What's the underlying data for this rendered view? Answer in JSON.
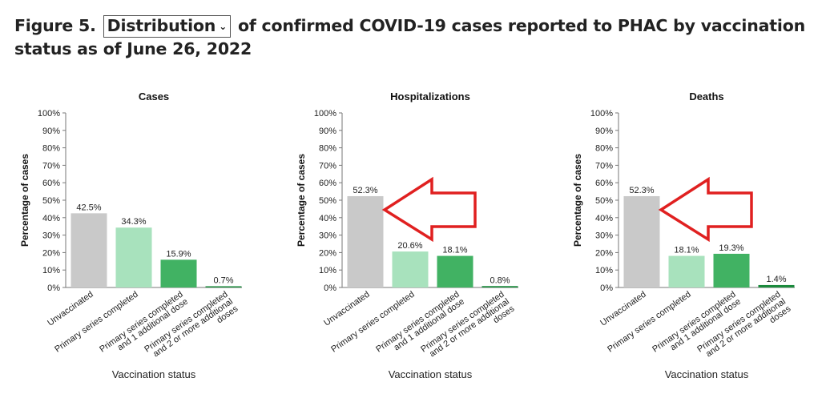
{
  "header": {
    "figure_label": "Figure 5.",
    "select_value": "Distribution",
    "title_rest": "of confirmed COVID-19 cases reported to PHAC by vaccination status as of June 26, 2022"
  },
  "colors": {
    "unvaccinated": "#c9c9c9",
    "primary": "#a8e2bd",
    "one_additional": "#41b263",
    "two_additional": "#1b8a3c",
    "arrow": "#e02020"
  },
  "icons": {
    "select": "chevron-down-icon",
    "callout": "arrow-left-icon"
  },
  "chart_data": [
    {
      "type": "bar",
      "title": "Cases",
      "ylabel": "Percentage of cases",
      "xlabel": "Vaccination status",
      "ylim": [
        0,
        100
      ],
      "yticks": [
        "0%",
        "10%",
        "20%",
        "30%",
        "40%",
        "50%",
        "60%",
        "70%",
        "80%",
        "90%",
        "100%"
      ],
      "categories": [
        "Unvaccinated",
        "Primary series completed",
        "Primary series completed and 1 additional dose",
        "Primary series completed and 2 or more additional doses"
      ],
      "values": [
        42.5,
        34.3,
        15.9,
        0.7
      ],
      "value_labels": [
        "42.5%",
        "34.3%",
        "15.9%",
        "0.7%"
      ],
      "arrow": false
    },
    {
      "type": "bar",
      "title": "Hospitalizations",
      "ylabel": "Percentage of cases",
      "xlabel": "Vaccination status",
      "ylim": [
        0,
        100
      ],
      "yticks": [
        "0%",
        "10%",
        "20%",
        "30%",
        "40%",
        "50%",
        "60%",
        "70%",
        "80%",
        "90%",
        "100%"
      ],
      "categories": [
        "Unvaccinated",
        "Primary series completed",
        "Primary series completed and 1 additional dose",
        "Primary series completed and 2 or more additional doses"
      ],
      "values": [
        52.3,
        20.6,
        18.1,
        0.8
      ],
      "value_labels": [
        "52.3%",
        "20.6%",
        "18.1%",
        "0.8%"
      ],
      "arrow": true
    },
    {
      "type": "bar",
      "title": "Deaths",
      "ylabel": "Percentage of cases",
      "xlabel": "Vaccination status",
      "ylim": [
        0,
        100
      ],
      "yticks": [
        "0%",
        "10%",
        "20%",
        "30%",
        "40%",
        "50%",
        "60%",
        "70%",
        "80%",
        "90%",
        "100%"
      ],
      "categories": [
        "Unvaccinated",
        "Primary series completed",
        "Primary series completed and 1 additional dose",
        "Primary series completed and 2 or more additional doses"
      ],
      "values": [
        52.3,
        18.1,
        19.3,
        1.4
      ],
      "value_labels": [
        "52.3%",
        "18.1%",
        "19.3%",
        "1.4%"
      ],
      "arrow": true
    }
  ]
}
